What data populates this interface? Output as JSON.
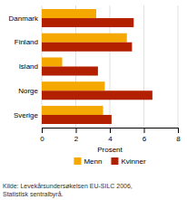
{
  "chart_data": {
    "type": "bar",
    "orientation": "horizontal",
    "categories": [
      "Danmark",
      "Finland",
      "Island",
      "Norge",
      "Sverige"
    ],
    "series": [
      {
        "name": "Menn",
        "color": "#F5A800",
        "values": [
          3.2,
          5.0,
          1.2,
          3.7,
          3.6
        ]
      },
      {
        "name": "Kvinner",
        "color": "#B22000",
        "values": [
          5.4,
          5.3,
          3.3,
          6.5,
          4.1
        ]
      }
    ],
    "xlabel": "Prosent",
    "xlim": [
      0,
      8
    ],
    "xticks": [
      0,
      2,
      4,
      6,
      8
    ],
    "grid": true,
    "legend": "bottom",
    "annotations": [
      "Kilde: Levekårsundersøkelsen EU-SILC 2006,",
      "Statistisk sentralbyrå."
    ]
  }
}
